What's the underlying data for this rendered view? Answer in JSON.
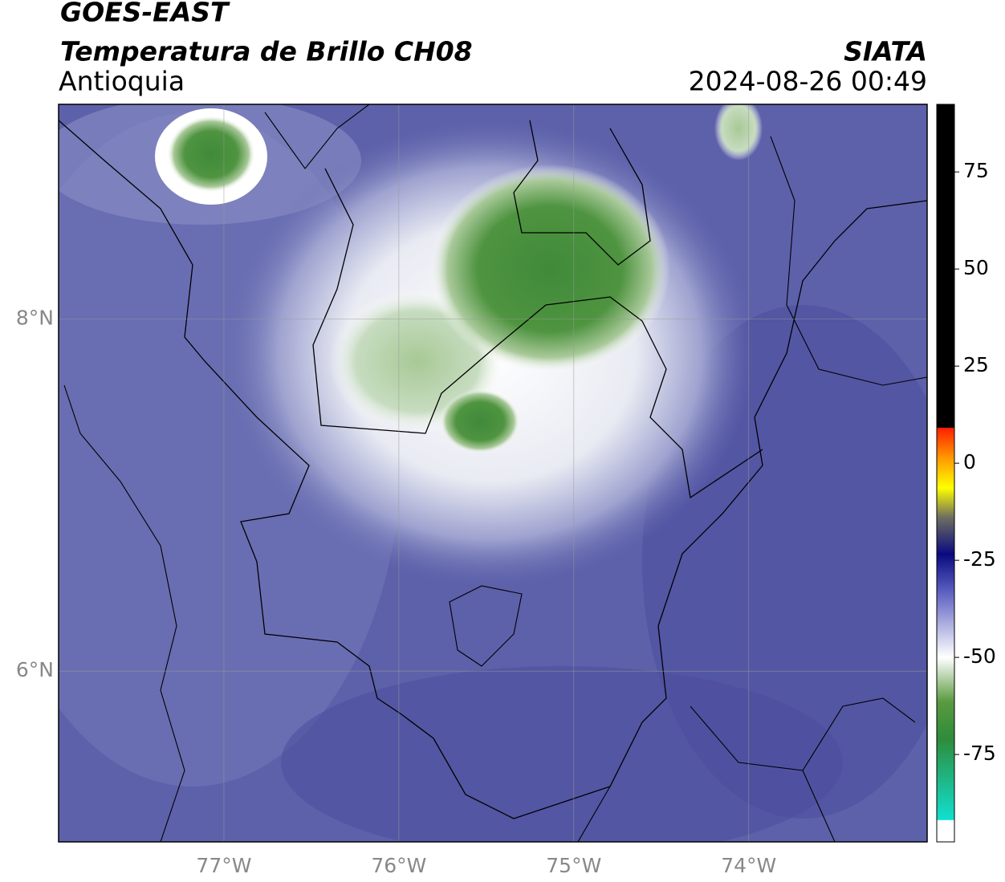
{
  "header": {
    "source": "GOES-EAST",
    "title": "Temperatura de Brillo CH08",
    "region": "Antioquia",
    "agency": "SIATA",
    "datetime": "2024-08-26 00:49"
  },
  "map": {
    "lonlim": [
      -77.945,
      -72.98
    ],
    "latlim": [
      5.03,
      9.22
    ],
    "lon_ticks": [
      {
        "value": -77,
        "label": "77°W"
      },
      {
        "value": -76,
        "label": "76°W"
      },
      {
        "value": -75,
        "label": "75°W"
      },
      {
        "value": -74,
        "label": "74°W"
      }
    ],
    "lat_ticks": [
      {
        "value": 8,
        "label": "8°N"
      },
      {
        "value": 6,
        "label": "6°N"
      }
    ]
  },
  "colorbar": {
    "lim": [
      -97.5,
      92.4
    ],
    "ticks": [
      75,
      50,
      25,
      0,
      -25,
      -50,
      -75
    ]
  }
}
